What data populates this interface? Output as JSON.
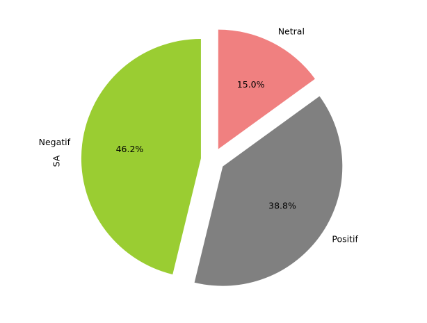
{
  "chart_data": {
    "type": "pie",
    "ylabel": "SA",
    "slices": [
      {
        "label": "Netral",
        "value": 15.0,
        "pct_label": "15.0%",
        "color": "#f08080",
        "exploded": true
      },
      {
        "label": "Positif",
        "value": 38.8,
        "pct_label": "38.8%",
        "color": "#808080",
        "exploded": true
      },
      {
        "label": "Negatif",
        "value": 46.2,
        "pct_label": "46.2%",
        "color": "#9acd32",
        "exploded": true
      }
    ],
    "start_angle_deg": 90,
    "direction": "clockwise"
  }
}
